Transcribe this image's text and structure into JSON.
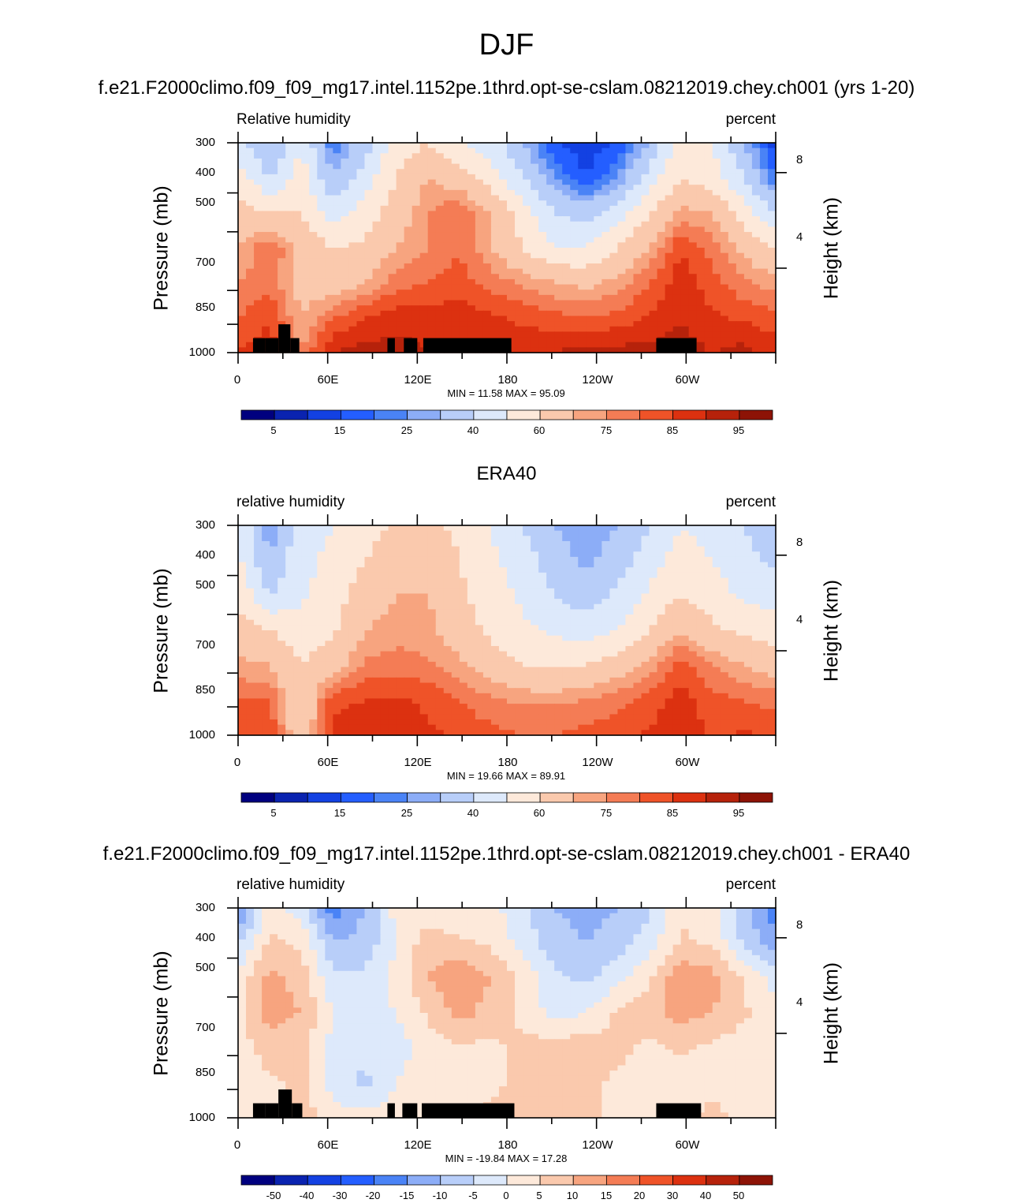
{
  "title": "DJF",
  "chart_data": [
    {
      "type": "heatmap",
      "panel_title": "f.e21.F2000climo.f09_f09_mg17.intel.1152pe.1thrd.opt-se-cslam.08212019.chey.ch001 (yrs 1-20)",
      "left_label": "Relative humidity",
      "right_label": "percent",
      "ylabel": "Pressure (mb)",
      "ylabel_right": "Height (km)",
      "yticks": [
        "300",
        "400",
        "500",
        "700",
        "850",
        "1000"
      ],
      "yticks_right": [
        "8",
        "4"
      ],
      "xticks": [
        "0",
        "60E",
        "120E",
        "180",
        "120W",
        "60W"
      ],
      "min_max": "MIN =  11.58  MAX =  95.09",
      "colorbar_labels": [
        "5",
        "15",
        "25",
        "40",
        "60",
        "75",
        "85",
        "95"
      ],
      "grid_values": [
        [
          45,
          28,
          50,
          20,
          35,
          55,
          60,
          50,
          45,
          30,
          15,
          12,
          15,
          30,
          55,
          50,
          30,
          12
        ],
        [
          55,
          40,
          55,
          30,
          45,
          60,
          70,
          65,
          55,
          40,
          25,
          15,
          25,
          45,
          60,
          55,
          40,
          20
        ],
        [
          65,
          60,
          60,
          45,
          55,
          65,
          75,
          80,
          70,
          55,
          40,
          35,
          45,
          60,
          72,
          70,
          55,
          40
        ],
        [
          70,
          80,
          68,
          60,
          62,
          70,
          75,
          80,
          70,
          60,
          50,
          50,
          60,
          70,
          85,
          78,
          68,
          60
        ],
        [
          75,
          78,
          66,
          64,
          70,
          78,
          80,
          82,
          78,
          74,
          70,
          68,
          72,
          80,
          88,
          82,
          76,
          72
        ],
        [
          80,
          85,
          70,
          80,
          85,
          88,
          88,
          88,
          86,
          84,
          82,
          80,
          82,
          86,
          90,
          86,
          84,
          82
        ],
        [
          85,
          88,
          75,
          90,
          92,
          92,
          90,
          90,
          88,
          88,
          90,
          92,
          92,
          92,
          92,
          90,
          92,
          88
        ]
      ],
      "land_mask": [
        {
          "lon": [
            10,
            18
          ],
          "p": [
            920,
            1000
          ]
        },
        {
          "lon": [
            18,
            27
          ],
          "p": [
            920,
            1000
          ]
        },
        {
          "lon": [
            27,
            35
          ],
          "p": [
            850,
            1000
          ]
        },
        {
          "lon": [
            35,
            41
          ],
          "p": [
            920,
            1000
          ]
        },
        {
          "lon": [
            100,
            105
          ],
          "p": [
            920,
            1000
          ]
        },
        {
          "lon": [
            111,
            120
          ],
          "p": [
            920,
            1000
          ]
        },
        {
          "lon": [
            124,
            183
          ],
          "p": [
            920,
            1000
          ]
        },
        {
          "lon": [
            280,
            307
          ],
          "p": [
            920,
            1000
          ]
        }
      ]
    },
    {
      "type": "heatmap",
      "panel_title": "ERA40",
      "left_label": "relative humidity",
      "right_label": "percent",
      "ylabel": "Pressure (mb)",
      "ylabel_right": "Height (km)",
      "yticks": [
        "300",
        "400",
        "500",
        "700",
        "850",
        "1000"
      ],
      "yticks_right": [
        "8",
        "4"
      ],
      "xticks": [
        "0",
        "60E",
        "120E",
        "180",
        "120W",
        "60W"
      ],
      "min_max": "MIN =  19.66  MAX =  89.91",
      "colorbar_labels": [
        "5",
        "15",
        "25",
        "40",
        "60",
        "75",
        "85",
        "95"
      ],
      "grid_values": [
        [
          50,
          25,
          45,
          50,
          55,
          62,
          62,
          58,
          50,
          40,
          30,
          25,
          30,
          40,
          50,
          45,
          40,
          35
        ],
        [
          52,
          30,
          48,
          52,
          60,
          66,
          66,
          60,
          52,
          45,
          35,
          28,
          35,
          45,
          55,
          50,
          42,
          38
        ],
        [
          58,
          40,
          48,
          55,
          66,
          70,
          70,
          62,
          55,
          48,
          40,
          35,
          42,
          52,
          60,
          55,
          48,
          45
        ],
        [
          65,
          60,
          55,
          58,
          70,
          72,
          72,
          65,
          58,
          52,
          48,
          45,
          50,
          60,
          70,
          62,
          58,
          55
        ],
        [
          72,
          70,
          60,
          66,
          76,
          78,
          76,
          72,
          65,
          60,
          58,
          60,
          65,
          72,
          82,
          75,
          70,
          66
        ],
        [
          80,
          80,
          60,
          84,
          85,
          86,
          84,
          80,
          76,
          74,
          74,
          75,
          78,
          82,
          88,
          82,
          80,
          78
        ],
        [
          82,
          85,
          62,
          86,
          88,
          88,
          86,
          84,
          82,
          80,
          80,
          82,
          84,
          86,
          88,
          84,
          86,
          84
        ]
      ]
    },
    {
      "type": "heatmap",
      "panel_title": "f.e21.F2000climo.f09_f09_mg17.intel.1152pe.1thrd.opt-se-cslam.08212019.chey.ch001 - ERA40",
      "left_label": "relative humidity",
      "right_label": "percent",
      "ylabel": "Pressure (mb)",
      "ylabel_right": "Height (km)",
      "yticks": [
        "300",
        "400",
        "500",
        "700",
        "850",
        "1000"
      ],
      "yticks_right": [
        "8",
        "4"
      ],
      "xticks": [
        "0",
        "60E",
        "120E",
        "180",
        "120W",
        "60W"
      ],
      "min_max": "MIN = -19.84  MAX =  17.28",
      "colorbar_labels": [
        "-50",
        "-40",
        "-30",
        "-20",
        "-15",
        "-10",
        "-5",
        "0",
        "5",
        "10",
        "15",
        "20",
        "30",
        "40",
        "50"
      ],
      "grid_values": [
        [
          -16,
          2,
          -2,
          -18,
          -10,
          2,
          2,
          0,
          2,
          -4,
          -10,
          -12,
          -10,
          -6,
          4,
          2,
          -8,
          -18
        ],
        [
          -6,
          6,
          4,
          -10,
          -8,
          0,
          8,
          6,
          4,
          -2,
          -8,
          -10,
          -8,
          -2,
          6,
          4,
          -6,
          -14
        ],
        [
          2,
          12,
          8,
          -4,
          -4,
          2,
          10,
          14,
          10,
          4,
          -4,
          -6,
          -2,
          4,
          14,
          12,
          4,
          -2
        ],
        [
          4,
          12,
          10,
          0,
          -2,
          0,
          6,
          12,
          8,
          4,
          -2,
          0,
          6,
          8,
          12,
          10,
          6,
          2
        ],
        [
          2,
          8,
          6,
          -2,
          -4,
          -2,
          2,
          4,
          4,
          6,
          8,
          8,
          6,
          4,
          6,
          4,
          2,
          4
        ],
        [
          0,
          4,
          6,
          -2,
          -6,
          0,
          2,
          2,
          4,
          6,
          8,
          6,
          4,
          4,
          2,
          4,
          2,
          2
        ],
        [
          2,
          2,
          8,
          2,
          2,
          2,
          2,
          4,
          6,
          8,
          8,
          6,
          4,
          4,
          4,
          6,
          4,
          2
        ]
      ],
      "land_mask": [
        {
          "lon": [
            10,
            18
          ],
          "p": [
            920,
            1000
          ]
        },
        {
          "lon": [
            18,
            27
          ],
          "p": [
            920,
            1000
          ]
        },
        {
          "lon": [
            27,
            36
          ],
          "p": [
            850,
            1000
          ]
        },
        {
          "lon": [
            36,
            43
          ],
          "p": [
            920,
            1000
          ]
        },
        {
          "lon": [
            100,
            105
          ],
          "p": [
            920,
            1000
          ]
        },
        {
          "lon": [
            110,
            120
          ],
          "p": [
            920,
            1000
          ]
        },
        {
          "lon": [
            123,
            185
          ],
          "p": [
            920,
            1000
          ]
        },
        {
          "lon": [
            280,
            310
          ],
          "p": [
            920,
            1000
          ]
        }
      ]
    }
  ],
  "palette_abs": [
    "#00007f",
    "#0a23b0",
    "#1341e2",
    "#245eff",
    "#4a83f6",
    "#8cadf7",
    "#b8cef9",
    "#dde9fb",
    "#fde9da",
    "#fac9ad",
    "#f7a47f",
    "#f47c55",
    "#ef5328",
    "#dc3110",
    "#b6220b",
    "#8d1306"
  ],
  "palette_diff": [
    "#00007f",
    "#0a23b0",
    "#1341e2",
    "#245eff",
    "#4a83f6",
    "#8cadf7",
    "#b8cef9",
    "#dde9fb",
    "#fde9da",
    "#fac9ad",
    "#f7a47f",
    "#f47c55",
    "#ef5328",
    "#dc3110",
    "#b6220b",
    "#8d1306"
  ],
  "levels_abs": [
    5,
    10,
    15,
    20,
    25,
    30,
    40,
    50,
    60,
    70,
    75,
    80,
    85,
    90,
    95
  ],
  "levels_diff": [
    -50,
    -40,
    -30,
    -20,
    -15,
    -10,
    -5,
    0,
    5,
    10,
    15,
    20,
    30,
    40,
    50
  ]
}
